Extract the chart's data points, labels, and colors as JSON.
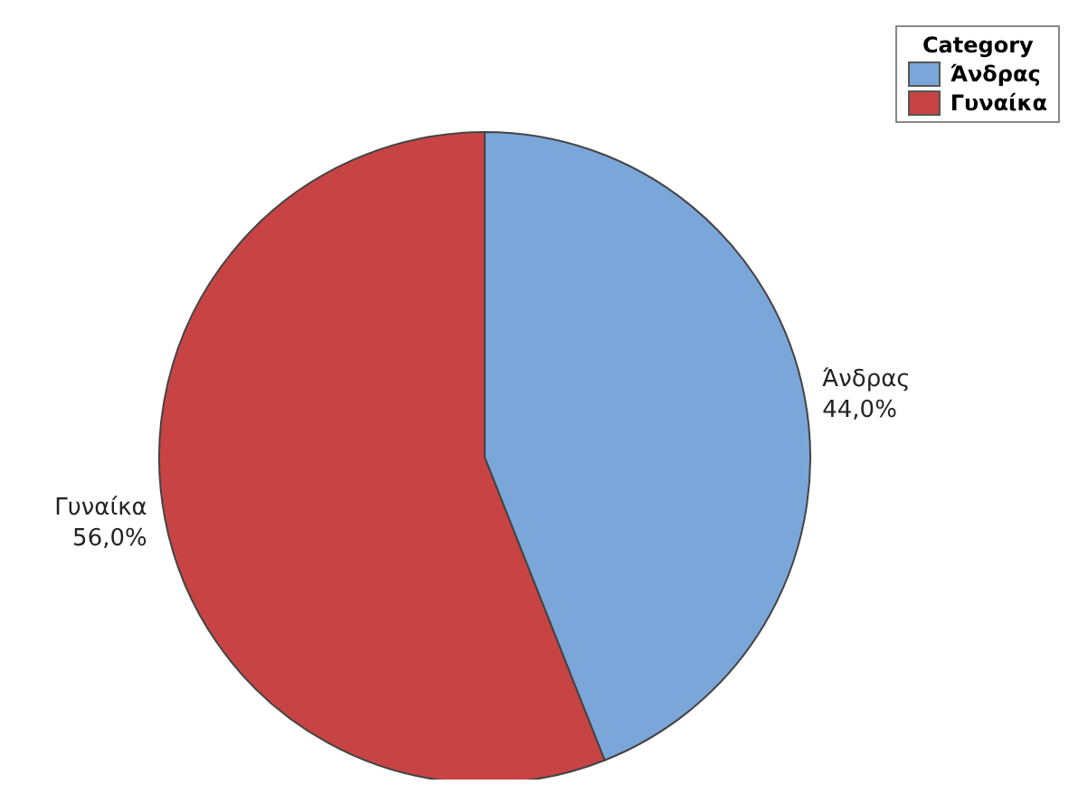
{
  "chart_data": {
    "type": "pie",
    "legend_title": "Category",
    "categories": [
      "Άνδρας",
      "Γυναίκα"
    ],
    "values": [
      44,
      56
    ],
    "colors": [
      "#7ba6d9",
      "#c84444"
    ],
    "value_labels": [
      "44,0%",
      "56,0%"
    ],
    "legend": "top right"
  }
}
